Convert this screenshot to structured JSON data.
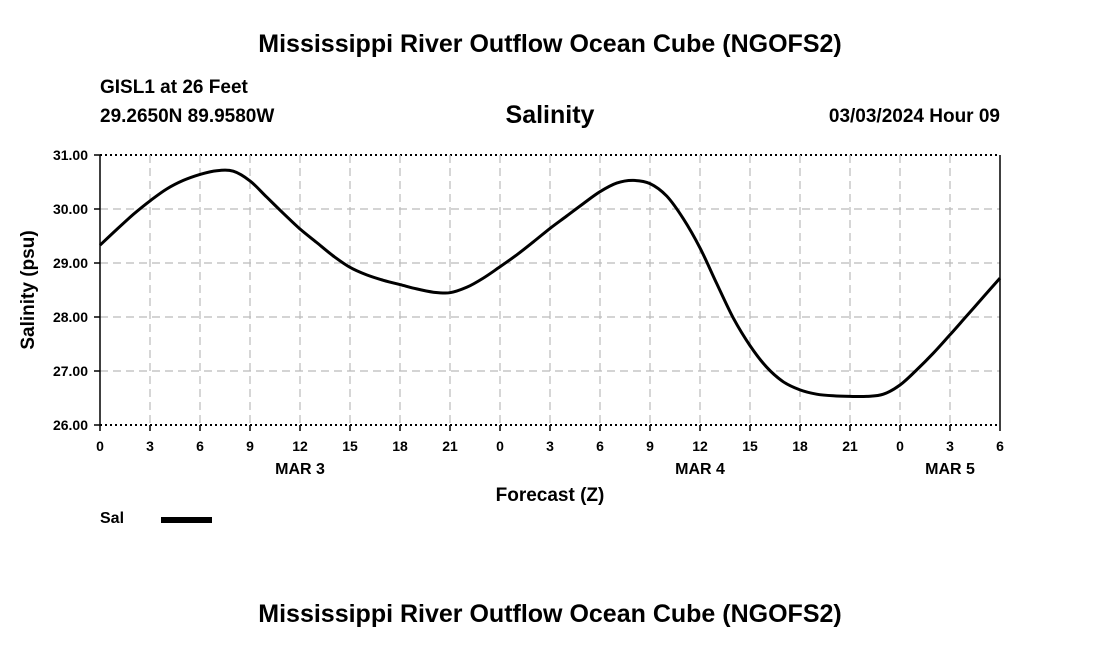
{
  "header": {
    "title": "Mississippi River Outflow Ocean Cube (NGOFS2)",
    "station": "GISL1 at 26 Feet",
    "coordinates": "29.2650N  89.9580W",
    "timestamp": "03/03/2024 Hour 09"
  },
  "footer": {
    "title": "Mississippi River Outflow Ocean Cube (NGOFS2)"
  },
  "legend": {
    "items": [
      {
        "label": "Sal",
        "color": "#000000"
      }
    ]
  },
  "chart_data": {
    "type": "line",
    "title": "Salinity",
    "xlabel": "Forecast (Z)",
    "ylabel": "Salinity (psu)",
    "ylim": [
      26.0,
      31.0
    ],
    "xlim": [
      0,
      54
    ],
    "y_ticks": [
      "26.00",
      "27.00",
      "28.00",
      "29.00",
      "30.00",
      "31.00"
    ],
    "y_tick_values": [
      26,
      27,
      28,
      29,
      30,
      31
    ],
    "x_ticks": [
      {
        "value": 0,
        "label": "0"
      },
      {
        "value": 3,
        "label": "3"
      },
      {
        "value": 6,
        "label": "6"
      },
      {
        "value": 9,
        "label": "9"
      },
      {
        "value": 12,
        "label": "12"
      },
      {
        "value": 15,
        "label": "15"
      },
      {
        "value": 18,
        "label": "18"
      },
      {
        "value": 21,
        "label": "21"
      },
      {
        "value": 24,
        "label": "0"
      },
      {
        "value": 27,
        "label": "3"
      },
      {
        "value": 30,
        "label": "6"
      },
      {
        "value": 33,
        "label": "9"
      },
      {
        "value": 36,
        "label": "12"
      },
      {
        "value": 39,
        "label": "15"
      },
      {
        "value": 42,
        "label": "18"
      },
      {
        "value": 45,
        "label": "21"
      },
      {
        "value": 48,
        "label": "0"
      },
      {
        "value": 51,
        "label": "3"
      },
      {
        "value": 54,
        "label": "6"
      }
    ],
    "date_labels": [
      {
        "value": 12,
        "label": "MAR 3"
      },
      {
        "value": 36,
        "label": "MAR 4"
      },
      {
        "value": 51,
        "label": "MAR 5"
      }
    ],
    "grid": true,
    "series": [
      {
        "name": "Sal",
        "color": "#000000",
        "x": [
          0,
          1,
          2,
          3,
          4,
          5,
          6,
          7,
          8,
          9,
          10,
          11,
          12,
          13,
          14,
          15,
          16,
          17,
          18,
          19,
          20,
          21,
          22,
          23,
          24,
          25,
          26,
          27,
          28,
          29,
          30,
          31,
          32,
          33,
          34,
          35,
          36,
          37,
          38,
          39,
          40,
          41,
          42,
          43,
          44,
          45,
          46,
          47,
          48,
          49,
          50,
          51,
          52,
          53,
          54
        ],
        "values": [
          29.33,
          29.62,
          29.9,
          30.15,
          30.37,
          30.53,
          30.64,
          30.71,
          30.7,
          30.52,
          30.22,
          29.92,
          29.63,
          29.38,
          29.13,
          28.92,
          28.78,
          28.68,
          28.6,
          28.52,
          28.46,
          28.45,
          28.55,
          28.72,
          28.93,
          29.15,
          29.39,
          29.64,
          29.87,
          30.1,
          30.32,
          30.48,
          30.53,
          30.47,
          30.24,
          29.82,
          29.28,
          28.62,
          27.98,
          27.47,
          27.07,
          26.8,
          26.65,
          26.57,
          26.54,
          26.53,
          26.53,
          26.57,
          26.74,
          27.02,
          27.33,
          27.67,
          28.02,
          28.37,
          28.72
        ]
      }
    ]
  }
}
